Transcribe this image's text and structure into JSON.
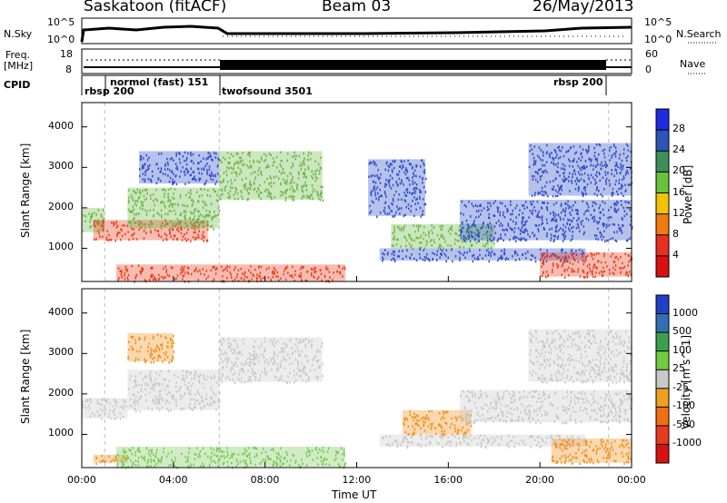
{
  "header": {
    "station": "Saskatoon (fitACF)",
    "beam": "Beam 03",
    "date": "26/May/2013"
  },
  "top_panel": {
    "nsky_label": "N.Sky",
    "nsky_ticks": [
      "10^5",
      "10^0"
    ],
    "nsearch_label": "N.Search",
    "nsearch_ticks": [
      "10^5",
      "10^0"
    ],
    "freq_label_1": "Freq.",
    "freq_label_2": "[MHz]",
    "freq_ticks": [
      "18",
      "8"
    ],
    "nave_label": "Nave",
    "nave_ticks": [
      "60",
      "0"
    ],
    "cpid_label": "CPID",
    "cpid_segments": [
      {
        "label": "rbsp 200",
        "start": "00:00",
        "end": "01:00"
      },
      {
        "label": "normol (fast) 151",
        "start": "01:00",
        "end": "06:00"
      },
      {
        "label": "twofsound 3501",
        "start": "06:00",
        "end": "23:00"
      },
      {
        "label": "rbsp 200",
        "start": "23:00",
        "end": "24:00"
      }
    ]
  },
  "chart_data": [
    {
      "type": "heatmap",
      "panel": "power",
      "xlabel": "",
      "ylabel": "Slant Range [km]",
      "yticks": [
        "1000",
        "2000",
        "3000",
        "4000"
      ],
      "ylim": [
        180,
        4600
      ],
      "xlim_hours": [
        0,
        24
      ],
      "colorbar_label": "Power [dB]",
      "colorbar_ticks": [
        "4",
        "8",
        "12",
        "16",
        "20",
        "24",
        "28"
      ],
      "colorbar_colors": [
        "#1f2be0",
        "#2d55b8",
        "#3c8f5a",
        "#67c23a",
        "#f2c200",
        "#f07a10",
        "#e83020",
        "#d81010"
      ],
      "colors": {
        "low": "#2d4ec8",
        "mid": "#6cb848",
        "high": "#e84020"
      },
      "bands": [
        {
          "t0": 0.0,
          "t1": 1.0,
          "r0": 1400,
          "r1": 2000,
          "level": "mid"
        },
        {
          "t0": 0.5,
          "t1": 5.5,
          "r0": 1200,
          "r1": 1700,
          "level": "high"
        },
        {
          "t0": 2.0,
          "t1": 6.0,
          "r0": 1500,
          "r1": 2500,
          "level": "mid"
        },
        {
          "t0": 2.5,
          "t1": 6.0,
          "r0": 2600,
          "r1": 3400,
          "level": "low"
        },
        {
          "t0": 6.0,
          "t1": 10.5,
          "r0": 2200,
          "r1": 3400,
          "level": "mid"
        },
        {
          "t0": 1.5,
          "t1": 11.5,
          "r0": 200,
          "r1": 600,
          "level": "high"
        },
        {
          "t0": 12.5,
          "t1": 15.0,
          "r0": 1800,
          "r1": 3200,
          "level": "low"
        },
        {
          "t0": 13.5,
          "t1": 18.0,
          "r0": 1000,
          "r1": 1600,
          "level": "mid"
        },
        {
          "t0": 13.0,
          "t1": 22.0,
          "r0": 700,
          "r1": 1000,
          "level": "low"
        },
        {
          "t0": 16.5,
          "t1": 24.0,
          "r0": 1200,
          "r1": 2200,
          "level": "low"
        },
        {
          "t0": 20.0,
          "t1": 24.0,
          "r0": 300,
          "r1": 900,
          "level": "high"
        },
        {
          "t0": 19.5,
          "t1": 24.0,
          "r0": 2300,
          "r1": 3600,
          "level": "low"
        }
      ]
    },
    {
      "type": "heatmap",
      "panel": "velocity",
      "xlabel": "Time UT",
      "ylabel": "Slant Range [km]",
      "yticks": [
        "1000",
        "2000",
        "3000",
        "4000"
      ],
      "ylim": [
        180,
        4600
      ],
      "xticks": [
        "00:00",
        "04:00",
        "08:00",
        "12:00",
        "16:00",
        "20:00",
        "00:00"
      ],
      "xlim_hours": [
        0,
        24
      ],
      "colorbar_label": "Velocity [m s^-1]",
      "colorbar_ticks": [
        "1000",
        "500",
        "100",
        "25",
        "-25",
        "-100",
        "-500",
        "-1000"
      ],
      "colorbar_colors": [
        "#2040c8",
        "#3070b0",
        "#3aa050",
        "#70cc40",
        "#c8c8c8",
        "#f0a020",
        "#f07010",
        "#e83a20",
        "#d81010"
      ],
      "colors": {
        "gray": "#c8c8c8",
        "green": "#7ac858",
        "orange": "#f0901c"
      },
      "bands": [
        {
          "t0": 0.0,
          "t1": 2.0,
          "r0": 1400,
          "r1": 1900,
          "level": "gray"
        },
        {
          "t0": 2.0,
          "t1": 6.0,
          "r0": 1600,
          "r1": 2600,
          "level": "gray"
        },
        {
          "t0": 6.0,
          "t1": 10.5,
          "r0": 2300,
          "r1": 3400,
          "level": "gray"
        },
        {
          "t0": 0.5,
          "t1": 2.0,
          "r0": 300,
          "r1": 500,
          "level": "orange"
        },
        {
          "t0": 1.5,
          "t1": 11.5,
          "r0": 200,
          "r1": 700,
          "level": "green"
        },
        {
          "t0": 2.0,
          "t1": 4.0,
          "r0": 2800,
          "r1": 3500,
          "level": "orange"
        },
        {
          "t0": 14.0,
          "t1": 17.0,
          "r0": 1000,
          "r1": 1600,
          "level": "orange"
        },
        {
          "t0": 13.0,
          "t1": 22.0,
          "r0": 700,
          "r1": 1000,
          "level": "gray"
        },
        {
          "t0": 16.5,
          "t1": 24.0,
          "r0": 1300,
          "r1": 2100,
          "level": "gray"
        },
        {
          "t0": 20.5,
          "t1": 24.0,
          "r0": 300,
          "r1": 900,
          "level": "orange"
        },
        {
          "t0": 19.5,
          "t1": 24.0,
          "r0": 2300,
          "r1": 3600,
          "level": "gray"
        }
      ]
    }
  ]
}
